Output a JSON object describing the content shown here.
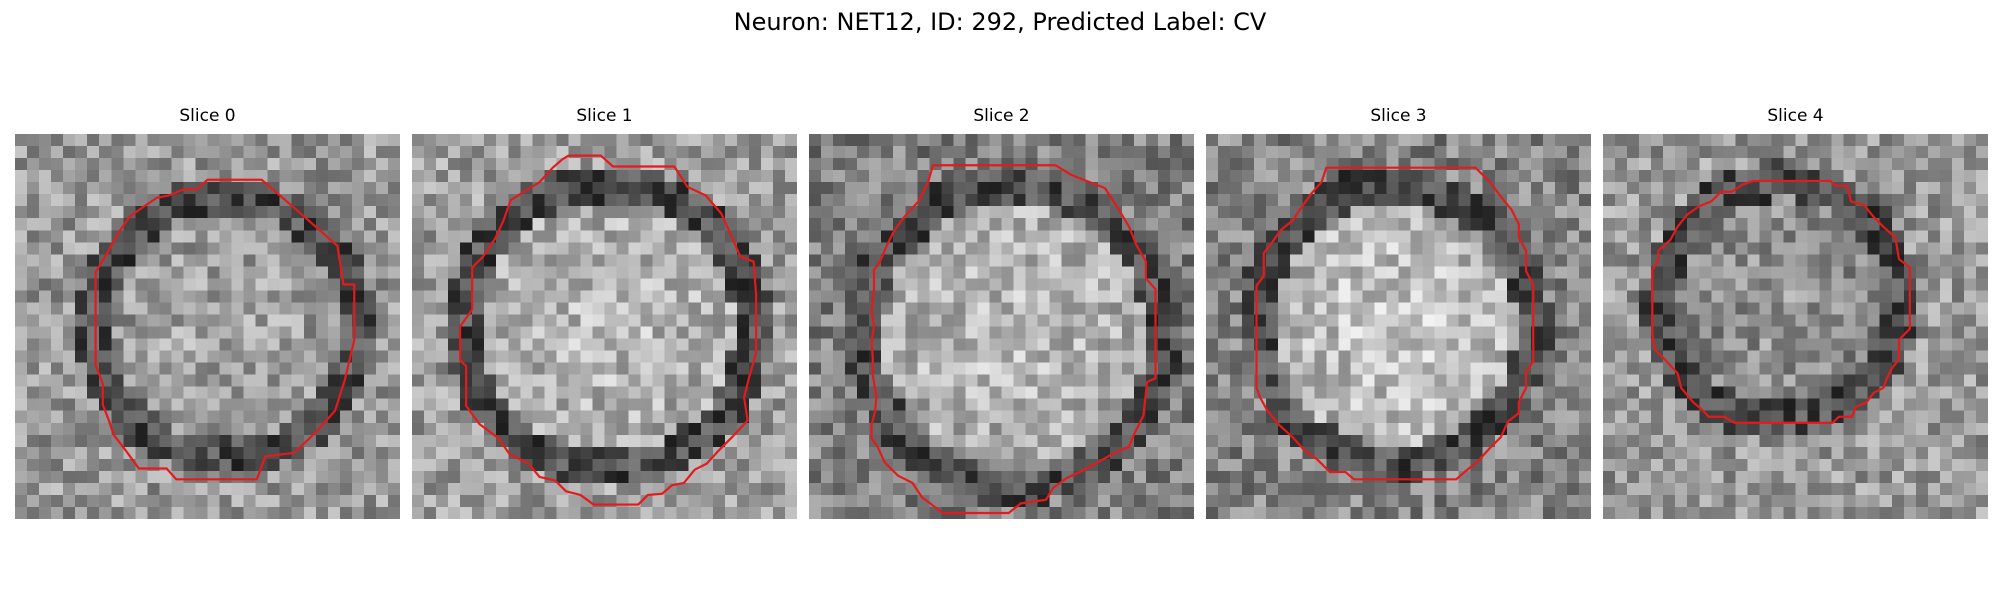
{
  "figure": {
    "title": "Neuron: NET12, ID: 292, Predicted Label: CV"
  },
  "outline_color": "#e41a1c",
  "colormap": "gray",
  "slices": [
    {
      "title": "Slice 0"
    },
    {
      "title": "Slice 1"
    },
    {
      "title": "Slice 2"
    },
    {
      "title": "Slice 3"
    },
    {
      "title": "Slice 4"
    }
  ]
}
